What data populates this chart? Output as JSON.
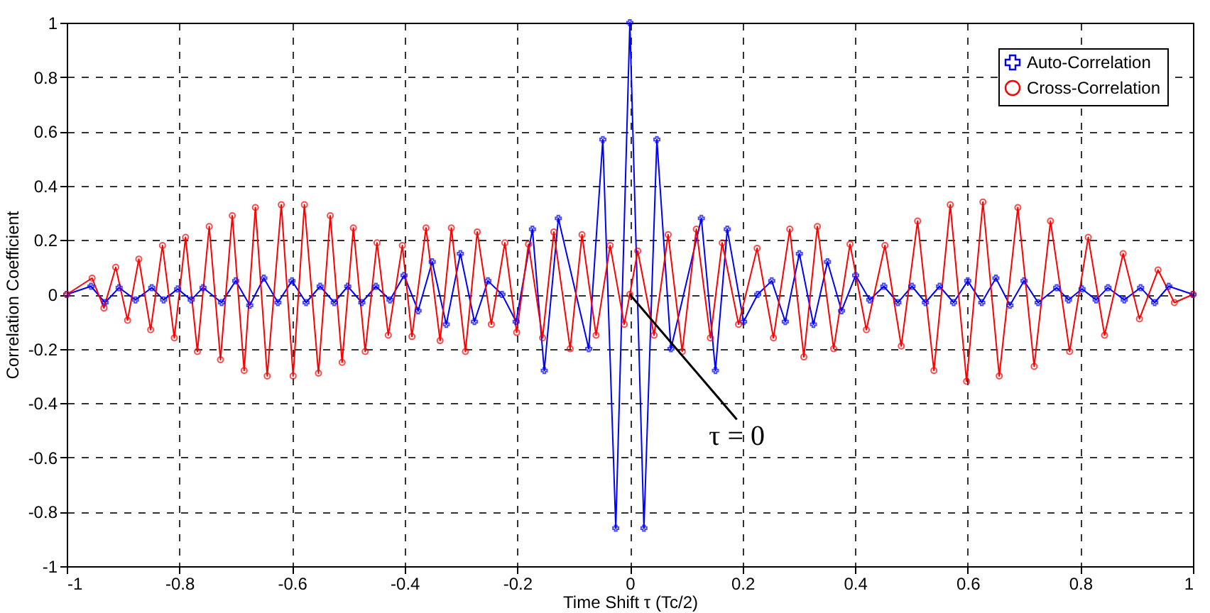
{
  "chart_data": {
    "type": "line",
    "xlabel": "Time Shift τ (Tc/2)",
    "ylabel": "Correlation Coefficient",
    "xlim": [
      -1,
      1
    ],
    "xticks": [
      -1,
      -0.8,
      -0.6,
      -0.4,
      -0.2,
      0,
      0.2,
      0.4,
      0.6,
      0.8,
      1
    ],
    "ylim": [
      -1,
      1
    ],
    "yticks": [
      -1,
      -0.8,
      -0.6,
      -0.4,
      -0.2,
      0,
      0.2,
      0.4,
      0.6,
      0.8,
      1
    ],
    "grid": true,
    "legend": "top right",
    "line_style": "solid",
    "annotations": [
      {
        "text": "τ = 0",
        "x": 0,
        "y": 0
      }
    ],
    "series": [
      {
        "name": "Auto-Correlation",
        "color": "#0000ff",
        "marker": "cross",
        "x": [
          -1,
          -0.957,
          -0.932,
          -0.907,
          -0.878,
          -0.849,
          -0.828,
          -0.803,
          -0.779,
          -0.758,
          -0.725,
          -0.7,
          -0.675,
          -0.65,
          -0.625,
          -0.6,
          -0.575,
          -0.55,
          -0.525,
          -0.501,
          -0.476,
          -0.451,
          -0.426,
          -0.401,
          -0.376,
          -0.351,
          -0.326,
          -0.301,
          -0.276,
          -0.252,
          -0.227,
          -0.202,
          -0.173,
          -0.152,
          -0.127,
          -0.073,
          -0.048,
          -0.025,
          0,
          0.025,
          0.048,
          0.073,
          0.127,
          0.152,
          0.173,
          0.202,
          0.227,
          0.252,
          0.276,
          0.301,
          0.326,
          0.351,
          0.376,
          0.401,
          0.426,
          0.451,
          0.476,
          0.501,
          0.525,
          0.55,
          0.575,
          0.6,
          0.625,
          0.65,
          0.675,
          0.7,
          0.725,
          0.758,
          0.779,
          0.803,
          0.828,
          0.849,
          0.878,
          0.907,
          0.932,
          0.957,
          1
        ],
        "values": [
          0,
          0.03,
          -0.03,
          0.025,
          -0.02,
          0.025,
          -0.02,
          0.02,
          -0.02,
          0.025,
          -0.03,
          0.05,
          -0.04,
          0.06,
          -0.03,
          0.05,
          -0.03,
          0.03,
          -0.03,
          0.03,
          -0.03,
          0.03,
          -0.02,
          0.07,
          -0.06,
          0.12,
          -0.11,
          0.15,
          -0.1,
          0.05,
          0,
          -0.1,
          0.24,
          -0.28,
          0.28,
          -0.2,
          0.57,
          -0.86,
          1,
          -0.86,
          0.57,
          -0.2,
          0.28,
          -0.28,
          0.24,
          -0.1,
          0,
          0.05,
          -0.1,
          0.15,
          -0.11,
          0.12,
          -0.06,
          0.07,
          -0.02,
          0.03,
          -0.03,
          0.03,
          -0.03,
          0.03,
          -0.03,
          0.05,
          -0.03,
          0.06,
          -0.04,
          0.05,
          -0.03,
          0.025,
          -0.02,
          0.02,
          -0.02,
          0.025,
          -0.02,
          0.025,
          -0.03,
          0.03,
          0
        ]
      },
      {
        "name": "Cross-Correlation",
        "color": "#ff0000",
        "marker": "circle",
        "x": [
          -1,
          -0.955,
          -0.934,
          -0.913,
          -0.892,
          -0.872,
          -0.851,
          -0.83,
          -0.809,
          -0.789,
          -0.768,
          -0.747,
          -0.727,
          -0.706,
          -0.685,
          -0.665,
          -0.644,
          -0.619,
          -0.598,
          -0.578,
          -0.553,
          -0.532,
          -0.511,
          -0.491,
          -0.47,
          -0.449,
          -0.429,
          -0.404,
          -0.387,
          -0.362,
          -0.337,
          -0.317,
          -0.292,
          -0.271,
          -0.246,
          -0.222,
          -0.201,
          -0.18,
          -0.155,
          -0.135,
          -0.106,
          -0.085,
          -0.06,
          -0.035,
          -0.01,
          0,
          0.014,
          0.043,
          0.068,
          0.093,
          0.118,
          0.143,
          0.164,
          0.193,
          0.226,
          0.255,
          0.284,
          0.309,
          0.333,
          0.362,
          0.391,
          0.42,
          0.453,
          0.482,
          0.511,
          0.54,
          0.569,
          0.598,
          0.627,
          0.656,
          0.689,
          0.718,
          0.747,
          0.781,
          0.814,
          0.843,
          0.876,
          0.905,
          0.938,
          0.967,
          1
        ],
        "values": [
          0,
          0.06,
          -0.05,
          0.1,
          -0.095,
          0.13,
          -0.13,
          0.18,
          -0.16,
          0.21,
          -0.21,
          0.25,
          -0.24,
          0.29,
          -0.28,
          0.32,
          -0.3,
          0.33,
          -0.3,
          0.33,
          -0.29,
          0.29,
          -0.25,
          0.245,
          -0.21,
          0.19,
          -0.15,
          0.18,
          -0.155,
          0.245,
          -0.17,
          0.245,
          -0.21,
          0.23,
          -0.11,
          0.19,
          -0.14,
          0.185,
          -0.16,
          0.23,
          -0.2,
          0.22,
          -0.15,
          0.18,
          -0.11,
          0,
          0.16,
          -0.15,
          0.22,
          -0.21,
          0.24,
          -0.16,
          0.19,
          -0.11,
          0.17,
          -0.16,
          0.24,
          -0.23,
          0.25,
          -0.2,
          0.185,
          -0.13,
          0.18,
          -0.19,
          0.27,
          -0.28,
          0.33,
          -0.32,
          0.34,
          -0.3,
          0.32,
          -0.265,
          0.27,
          -0.21,
          0.21,
          -0.15,
          0.15,
          -0.09,
          0.09,
          -0.03,
          0
        ]
      }
    ]
  }
}
